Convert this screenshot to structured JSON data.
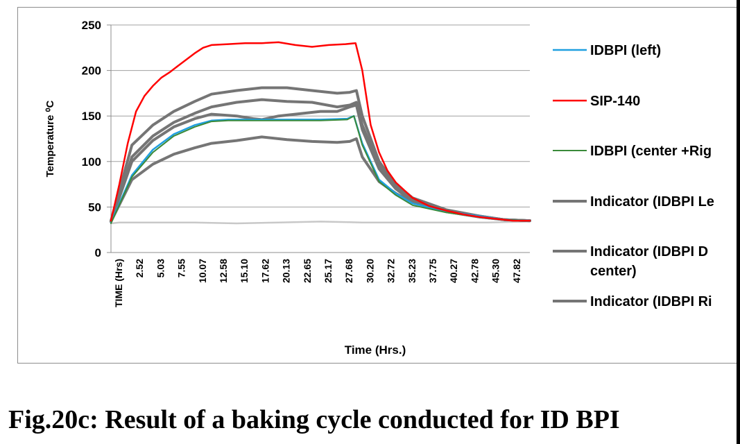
{
  "caption": "Fig.20c: Result of a baking cycle conducted for ID BPI",
  "chart_data": {
    "type": "line",
    "title": "",
    "xlabel": "Time (Hrs.)",
    "ylabel": "Temperature ⁰C",
    "ylim": [
      0,
      250
    ],
    "yticks": [
      "0",
      "50",
      "100",
      "150",
      "200",
      "250"
    ],
    "xlim": [
      0,
      50
    ],
    "x_first_tick_label": "TIME (Hrs)",
    "xtick_labels": [
      "2.52",
      "5.03",
      "7.55",
      "10.07",
      "12.58",
      "15.10",
      "17.62",
      "20.13",
      "22.65",
      "25.17",
      "27.68",
      "30.20",
      "32.72",
      "35.23",
      "37.75",
      "40.27",
      "42.78",
      "45.30",
      "47.82"
    ],
    "grid": "horizontal",
    "legend_position": "right",
    "series": [
      {
        "name": "IDBPI (left)",
        "color": "#1f9fe0",
        "width": 2.5,
        "x": [
          0,
          2.5,
          5,
          7.5,
          10,
          12,
          14,
          20,
          25,
          28.2,
          29,
          30,
          32,
          34,
          36,
          40,
          44,
          47,
          50
        ],
        "y": [
          33,
          85,
          113,
          130,
          140,
          145,
          146,
          146,
          146,
          147,
          150,
          120,
          80,
          65,
          54,
          45,
          40,
          36,
          35
        ]
      },
      {
        "name": "SIP-140",
        "color": "#ff0000",
        "width": 2.5,
        "x": [
          0,
          1,
          2,
          3,
          4,
          5,
          6,
          7,
          8,
          9,
          10,
          11,
          12,
          14,
          16,
          18,
          20,
          22,
          24,
          26,
          28,
          29.2,
          30,
          31,
          32,
          33,
          34,
          36,
          38,
          40,
          42,
          44,
          46,
          48,
          50
        ],
        "y": [
          35,
          75,
          120,
          155,
          172,
          183,
          192,
          198,
          205,
          212,
          219,
          225,
          228,
          229,
          230,
          230,
          231,
          228,
          226,
          228,
          229,
          230,
          200,
          140,
          110,
          90,
          77,
          60,
          51,
          46,
          42,
          39,
          37,
          35,
          35
        ]
      },
      {
        "name": "IDBPI (center +Rig",
        "color": "#3a8a3a",
        "width": 2,
        "x": [
          0,
          2.5,
          5,
          7.5,
          10,
          12,
          14,
          20,
          25,
          28.2,
          29,
          30,
          32,
          34,
          36,
          40,
          44,
          47,
          50
        ],
        "y": [
          32,
          83,
          110,
          128,
          138,
          144,
          145,
          145,
          145,
          146,
          150,
          118,
          78,
          63,
          52,
          44,
          39,
          36,
          35
        ]
      },
      {
        "name": "Indicator (IDBPI Le",
        "color": "#757575",
        "width": 4,
        "x": [
          0,
          2.5,
          5,
          7.5,
          10,
          12,
          15,
          18,
          21,
          24,
          27,
          28.5,
          29.3,
          30,
          32,
          34,
          36,
          40,
          44,
          47,
          50
        ],
        "y": [
          35,
          118,
          140,
          155,
          166,
          174,
          178,
          181,
          181,
          178,
          175,
          176,
          178,
          150,
          100,
          75,
          60,
          47,
          40,
          36,
          35
        ]
      },
      {
        "name": "Indicator (IDBPI D\ncenter)",
        "color": "#757575",
        "width": 4,
        "x": [
          0,
          2.5,
          5,
          7.5,
          10,
          12,
          15,
          18,
          21,
          24,
          27,
          28.5,
          29.3,
          30,
          32,
          34,
          36,
          40,
          44,
          47,
          50
        ],
        "y": [
          34,
          105,
          128,
          143,
          153,
          160,
          165,
          168,
          166,
          165,
          160,
          162,
          165,
          140,
          95,
          72,
          58,
          46,
          40,
          36,
          35
        ]
      },
      {
        "name": "Indicator (IDBPI Ri",
        "color": "#757575",
        "width": 4,
        "x": [
          0,
          2.5,
          5,
          7.5,
          10,
          12,
          15,
          18,
          21,
          24,
          27,
          28.5,
          29.3,
          30,
          32,
          34,
          36,
          40,
          44,
          47,
          50
        ],
        "y": [
          34,
          80,
          97,
          108,
          115,
          120,
          123,
          127,
          124,
          122,
          121,
          122,
          125,
          105,
          78,
          65,
          55,
          45,
          39,
          36,
          35
        ]
      }
    ],
    "extra_lines": [
      {
        "color": "#757575",
        "width": 4,
        "x": [
          0,
          2.5,
          5,
          7.5,
          10,
          12,
          15,
          17,
          18,
          20,
          22,
          25,
          27,
          28.5,
          29.3,
          30,
          32,
          34,
          36,
          40,
          44,
          47,
          50
        ],
        "y": [
          34,
          100,
          123,
          138,
          147,
          152,
          150,
          147,
          146,
          150,
          152,
          155,
          155,
          160,
          162,
          135,
          92,
          70,
          56,
          45,
          39,
          36,
          35
        ]
      },
      {
        "color": "#c8c8c8",
        "width": 2.5,
        "x": [
          0,
          1,
          5,
          10,
          15,
          20,
          25,
          30,
          35,
          40,
          45,
          50
        ],
        "y": [
          32,
          33,
          33,
          33,
          32,
          33,
          34,
          33,
          33,
          33,
          33,
          34
        ]
      }
    ]
  }
}
